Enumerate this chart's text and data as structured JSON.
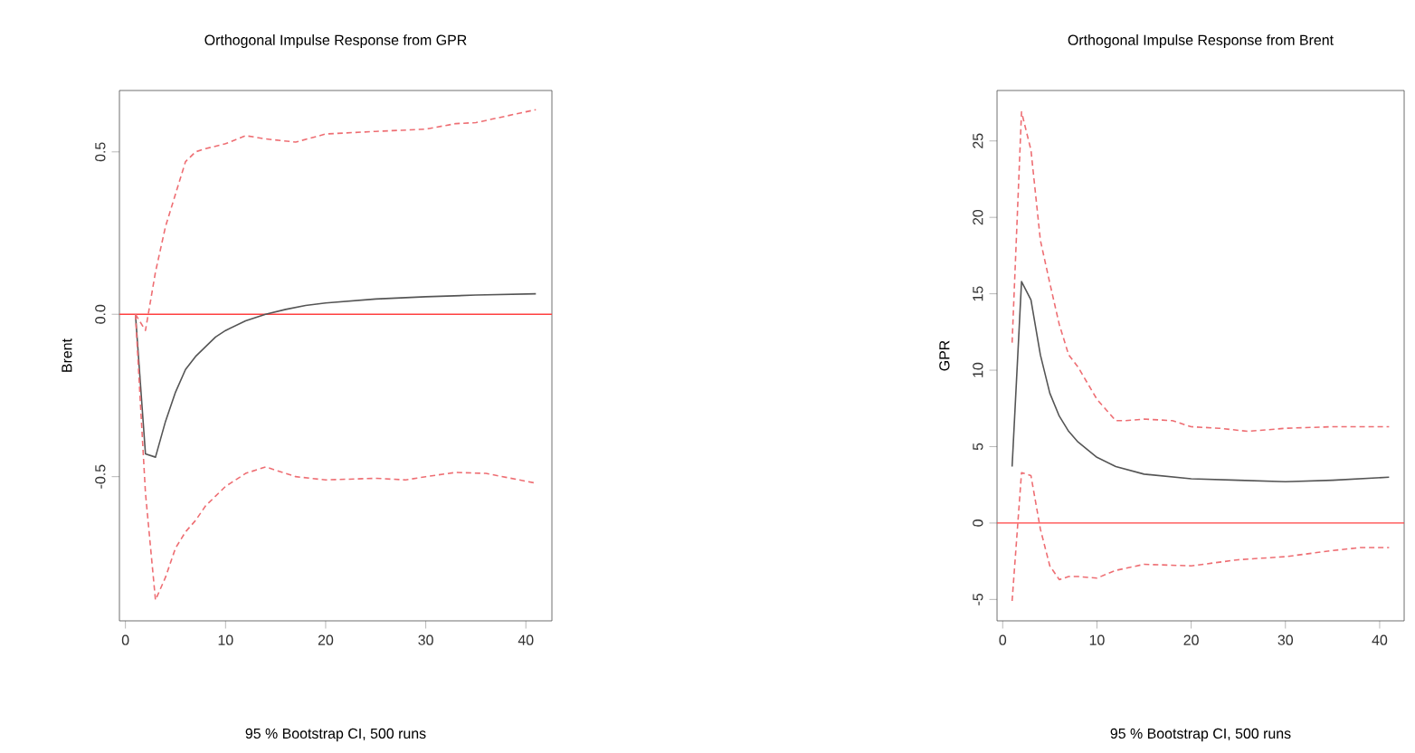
{
  "chart_data": [
    {
      "type": "line",
      "title": "Orthogonal Impulse Response from GPR",
      "ylabel": "Brent",
      "annotations": [
        "95 % Bootstrap CI,  500 runs"
      ],
      "xlim": [
        -0.6,
        42.6
      ],
      "xticks": [
        0,
        10,
        20,
        30,
        40
      ],
      "ylim": [
        -0.944,
        0.689
      ],
      "yticks": [
        -0.5,
        {
          "value": 0,
          "label": "0.0"
        },
        0.5
      ],
      "series": [
        {
          "color": "#555555",
          "line_style": "solid",
          "x": [
            1,
            2,
            3,
            4,
            5,
            6,
            7,
            8,
            9,
            10,
            12,
            14,
            16,
            18,
            20,
            25,
            30,
            35,
            41
          ],
          "values": [
            0,
            -0.43,
            -0.44,
            -0.33,
            -0.24,
            -0.17,
            -0.13,
            -0.1,
            -0.07,
            -0.05,
            -0.02,
            0.0,
            0.015,
            0.027,
            0.035,
            0.047,
            0.054,
            0.059,
            0.063
          ]
        },
        {
          "color": "#ee6e73",
          "line_style": "dashed",
          "x": [
            1,
            2,
            3,
            4,
            5,
            6,
            7,
            8,
            10,
            12,
            14,
            17,
            20,
            25,
            30,
            33,
            35,
            38,
            41
          ],
          "values": [
            0,
            -0.05,
            0.13,
            0.27,
            0.37,
            0.47,
            0.5,
            0.51,
            0.525,
            0.55,
            0.54,
            0.53,
            0.555,
            0.563,
            0.57,
            0.587,
            0.59,
            0.61,
            0.63
          ]
        },
        {
          "color": "#ee6e73",
          "line_style": "dashed",
          "x": [
            1,
            2,
            3,
            4,
            5,
            6,
            7,
            8,
            10,
            12,
            14,
            17,
            20,
            25,
            28,
            30,
            33,
            36,
            41
          ],
          "values": [
            0,
            -0.55,
            -0.88,
            -0.81,
            -0.72,
            -0.67,
            -0.635,
            -0.59,
            -0.53,
            -0.49,
            -0.47,
            -0.5,
            -0.51,
            -0.505,
            -0.51,
            -0.5,
            -0.487,
            -0.49,
            -0.52
          ]
        }
      ],
      "ref_lines": [
        {
          "axis": "y",
          "value": 0,
          "color": "#ff4040"
        }
      ]
    },
    {
      "type": "line",
      "title": "Orthogonal Impulse Response from Brent",
      "ylabel": "GPR",
      "annotations": [
        "95 % Bootstrap CI,  500 runs"
      ],
      "xlim": [
        -0.6,
        42.6
      ],
      "xticks": [
        0,
        10,
        20,
        30,
        40
      ],
      "ylim": [
        -6.4,
        28.3
      ],
      "yticks": [
        -5,
        0,
        5,
        10,
        15,
        20,
        25
      ],
      "series": [
        {
          "color": "#555555",
          "line_style": "solid",
          "x": [
            1,
            2,
            3,
            4,
            5,
            6,
            7,
            8,
            10,
            12,
            15,
            20,
            25,
            30,
            35,
            41
          ],
          "values": [
            3.7,
            15.8,
            14.6,
            11.0,
            8.5,
            7.0,
            6.0,
            5.3,
            4.3,
            3.7,
            3.2,
            2.9,
            2.8,
            2.7,
            2.8,
            3.0
          ]
        },
        {
          "color": "#ee6e73",
          "line_style": "dashed",
          "x": [
            1,
            2,
            3,
            4,
            5,
            6,
            7,
            8,
            10,
            12,
            13,
            15,
            18,
            20,
            23,
            26,
            30,
            35,
            41
          ],
          "values": [
            11.8,
            26.9,
            24.4,
            18.5,
            15.7,
            13.0,
            11.0,
            10.2,
            8.1,
            6.7,
            6.7,
            6.8,
            6.7,
            6.3,
            6.2,
            6.0,
            6.2,
            6.3,
            6.3
          ]
        },
        {
          "color": "#ee6e73",
          "line_style": "dashed",
          "x": [
            1,
            2,
            3,
            4,
            5,
            6,
            7,
            8,
            10,
            12,
            15,
            20,
            25,
            30,
            35,
            38,
            41
          ],
          "values": [
            -5.1,
            3.3,
            3.1,
            -0.4,
            -2.8,
            -3.7,
            -3.5,
            -3.5,
            -3.6,
            -3.1,
            -2.7,
            -2.8,
            -2.4,
            -2.2,
            -1.8,
            -1.6,
            -1.6
          ]
        }
      ],
      "ref_lines": [
        {
          "axis": "y",
          "value": 0,
          "color": "#ff4040"
        }
      ]
    }
  ]
}
